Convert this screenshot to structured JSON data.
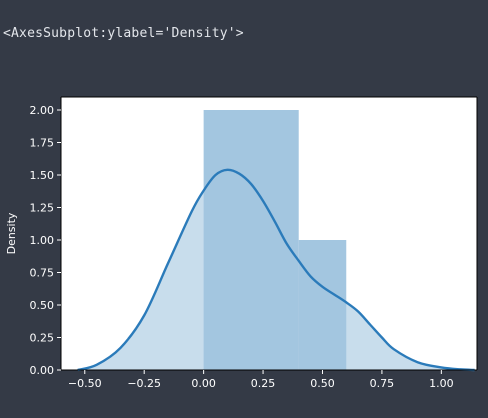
{
  "output": {
    "repr": "<AxesSubplot:ylabel='Density'>"
  },
  "colors": {
    "page_background": "#343a46",
    "plot_background": "#ffffff",
    "histogram_fill": "#a3c6e0",
    "kde_fill": "#a3c6e0",
    "kde_line": "#2b7bba",
    "text": "#ffffff"
  },
  "chart_data": {
    "type": "histogram+kde",
    "title": "",
    "xlabel": "",
    "ylabel": "Density",
    "xlim": [
      -0.6,
      1.15
    ],
    "ylim": [
      0,
      2.1
    ],
    "x_ticks": [
      -0.5,
      -0.25,
      0.0,
      0.25,
      0.5,
      0.75,
      1.0
    ],
    "x_tick_labels": [
      "−0.50",
      "−0.25",
      "0.00",
      "0.25",
      "0.50",
      "0.75",
      "1.00"
    ],
    "y_ticks": [
      0.0,
      0.25,
      0.5,
      0.75,
      1.0,
      1.25,
      1.5,
      1.75,
      2.0
    ],
    "y_tick_labels": [
      "0.00",
      "0.25",
      "0.50",
      "0.75",
      "1.00",
      "1.25",
      "1.50",
      "1.75",
      "2.00"
    ],
    "histogram": {
      "bin_edges": [
        0.0,
        0.4,
        0.6
      ],
      "densities": [
        2.0,
        1.0
      ]
    },
    "kde": {
      "x": [
        -0.53,
        -0.45,
        -0.35,
        -0.25,
        -0.15,
        -0.05,
        0.0,
        0.05,
        0.1,
        0.15,
        0.2,
        0.25,
        0.3,
        0.35,
        0.4,
        0.45,
        0.5,
        0.55,
        0.6,
        0.65,
        0.7,
        0.75,
        0.8,
        0.9,
        1.0,
        1.08,
        1.14
      ],
      "y": [
        0.0,
        0.04,
        0.17,
        0.42,
        0.82,
        1.22,
        1.38,
        1.5,
        1.54,
        1.51,
        1.43,
        1.3,
        1.14,
        0.97,
        0.84,
        0.72,
        0.64,
        0.58,
        0.52,
        0.45,
        0.35,
        0.25,
        0.16,
        0.06,
        0.02,
        0.005,
        0.0
      ]
    },
    "grid": false,
    "legend": "none"
  }
}
